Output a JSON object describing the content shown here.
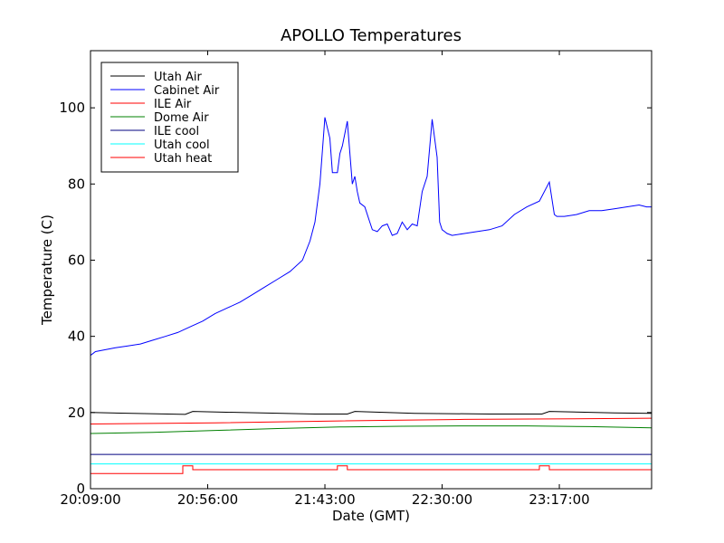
{
  "chart_data": {
    "type": "line",
    "title": "APOLLO Temperatures",
    "xlabel": "Date (GMT)",
    "ylabel": "Temperature (C)",
    "xlim": [
      0,
      225
    ],
    "ylim": [
      0,
      115
    ],
    "x_unit": "minutes after 20:09:00",
    "x_ticks": [
      {
        "value": 0,
        "label": "20:09:00"
      },
      {
        "value": 47,
        "label": "20:56:00"
      },
      {
        "value": 94,
        "label": "21:43:00"
      },
      {
        "value": 141,
        "label": "22:30:00"
      },
      {
        "value": 188,
        "label": "23:17:00"
      }
    ],
    "y_ticks": [
      {
        "value": 0,
        "label": "0"
      },
      {
        "value": 20,
        "label": "20"
      },
      {
        "value": 40,
        "label": "40"
      },
      {
        "value": 60,
        "label": "60"
      },
      {
        "value": 80,
        "label": "80"
      },
      {
        "value": 100,
        "label": "100"
      }
    ],
    "grid": false,
    "legend_position": "top-left",
    "series": [
      {
        "name": "Utah Air",
        "color": "#000000",
        "x": [
          0,
          38,
          41,
          60,
          90,
          103,
          106,
          130,
          160,
          181,
          184,
          210,
          225
        ],
        "y": [
          20.0,
          19.5,
          20.3,
          20.0,
          19.6,
          19.6,
          20.3,
          19.8,
          19.6,
          19.6,
          20.3,
          19.9,
          19.8
        ]
      },
      {
        "name": "Cabinet Air",
        "color": "#0000ff",
        "x": [
          0,
          2,
          6,
          10,
          15,
          20,
          25,
          30,
          35,
          40,
          45,
          50,
          55,
          60,
          65,
          70,
          75,
          80,
          85,
          88,
          90,
          92,
          94,
          96,
          97,
          99,
          100,
          101,
          103,
          105,
          106,
          107,
          108,
          110,
          112,
          113,
          115,
          117,
          119,
          121,
          123,
          125,
          127,
          129,
          131,
          133,
          135,
          137,
          139,
          140,
          141,
          142,
          143,
          145,
          150,
          155,
          160,
          165,
          170,
          175,
          180,
          184,
          186,
          187,
          188,
          190,
          195,
          200,
          205,
          210,
          215,
          220,
          223,
          225
        ],
        "y": [
          35,
          36,
          36.5,
          37,
          37.5,
          38,
          39,
          40,
          41,
          42.5,
          44,
          46,
          47.5,
          49,
          51,
          53,
          55,
          57,
          60,
          65,
          70,
          80,
          97.5,
          92,
          83,
          83,
          88,
          90,
          96.5,
          80,
          82,
          78,
          75,
          74,
          70,
          68,
          67.5,
          69,
          69.5,
          66.5,
          67,
          70,
          68,
          69.5,
          69,
          78,
          82,
          97,
          87,
          70,
          68,
          67.5,
          67,
          66.5,
          67,
          67.5,
          68,
          69,
          72,
          74,
          75.5,
          80.5,
          72,
          71.5,
          71.5,
          71.5,
          72,
          73,
          73,
          73.5,
          74,
          74.5,
          74,
          74
        ]
      },
      {
        "name": "ILE Air",
        "color": "#ff0000",
        "x": [
          0,
          50,
          100,
          150,
          200,
          225
        ],
        "y": [
          17.0,
          17.3,
          17.8,
          18.2,
          18.4,
          18.5
        ]
      },
      {
        "name": "Dome Air",
        "color": "#008000",
        "x": [
          0,
          25,
          50,
          75,
          100,
          125,
          150,
          175,
          200,
          225
        ],
        "y": [
          14.5,
          14.8,
          15.3,
          15.8,
          16.2,
          16.4,
          16.5,
          16.5,
          16.3,
          16.0
        ]
      },
      {
        "name": "ILE cool",
        "color": "#000080",
        "x": [
          0,
          225
        ],
        "y": [
          9.0,
          9.0
        ]
      },
      {
        "name": "Utah cool",
        "color": "#00ffff",
        "x": [
          0,
          225
        ],
        "y": [
          6.5,
          6.5
        ]
      },
      {
        "name": "Utah heat",
        "color": "#ff0000",
        "x": [
          0,
          37,
          37,
          41,
          41,
          99,
          99,
          103,
          103,
          180,
          180,
          184,
          184,
          225
        ],
        "y": [
          4,
          4,
          6,
          6,
          5,
          5,
          6,
          6,
          5,
          5,
          6,
          6,
          5,
          5
        ]
      }
    ]
  }
}
